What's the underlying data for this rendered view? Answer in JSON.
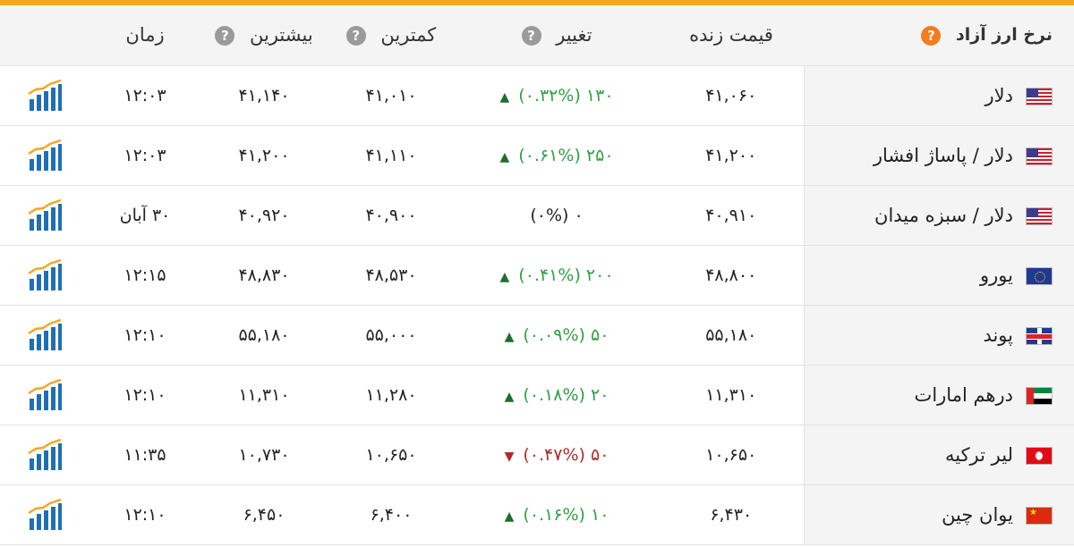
{
  "header": {
    "title": "نرخ ارز آزاد",
    "title_help": "?",
    "columns": {
      "live_price": "قیمت زنده",
      "change": "تغییر",
      "low": "کمترین",
      "high": "بیشترین",
      "time": "زمان"
    },
    "help_mark": "?"
  },
  "rows": [
    {
      "name": "دلار",
      "flag": "us-flag",
      "price": "۴۱,۰۶۰",
      "change_value": "۱۳۰",
      "change_pct": "(۰.۳۲%)",
      "direction": "up",
      "low": "۴۱,۰۱۰",
      "high": "۴۱,۱۴۰",
      "time": "۱۲:۰۳"
    },
    {
      "name": "دلار / پاساژ افشار",
      "flag": "us-flag",
      "price": "۴۱,۲۰۰",
      "change_value": "۲۵۰",
      "change_pct": "(۰.۶۱%)",
      "direction": "up",
      "low": "۴۱,۱۱۰",
      "high": "۴۱,۲۰۰",
      "time": "۱۲:۰۳"
    },
    {
      "name": "دلار / سبزه میدان",
      "flag": "us-flag",
      "price": "۴۰,۹۱۰",
      "change_value": "۰",
      "change_pct": "(۰%)",
      "direction": "flat",
      "low": "۴۰,۹۰۰",
      "high": "۴۰,۹۲۰",
      "time": "۳۰ آبان"
    },
    {
      "name": "یورو",
      "flag": "eu-flag",
      "price": "۴۸,۸۰۰",
      "change_value": "۲۰۰",
      "change_pct": "(۰.۴۱%)",
      "direction": "up",
      "low": "۴۸,۵۳۰",
      "high": "۴۸,۸۳۰",
      "time": "۱۲:۱۵"
    },
    {
      "name": "پوند",
      "flag": "uk-flag",
      "price": "۵۵,۱۸۰",
      "change_value": "۵۰",
      "change_pct": "(۰.۰۹%)",
      "direction": "up",
      "low": "۵۵,۰۰۰",
      "high": "۵۵,۱۸۰",
      "time": "۱۲:۱۰"
    },
    {
      "name": "درهم امارات",
      "flag": "ae-flag",
      "price": "۱۱,۳۱۰",
      "change_value": "۲۰",
      "change_pct": "(۰.۱۸%)",
      "direction": "up",
      "low": "۱۱,۲۸۰",
      "high": "۱۱,۳۱۰",
      "time": "۱۲:۱۰"
    },
    {
      "name": "لیر ترکیه",
      "flag": "tr-flag",
      "price": "۱۰,۶۵۰",
      "change_value": "۵۰",
      "change_pct": "(۰.۴۷%)",
      "direction": "down",
      "low": "۱۰,۶۵۰",
      "high": "۱۰,۷۳۰",
      "time": "۱۱:۳۵"
    },
    {
      "name": "یوان چین",
      "flag": "cn-flag",
      "price": "۶,۴۳۰",
      "change_value": "۱۰",
      "change_pct": "(۰.۱۶%)",
      "direction": "up",
      "low": "۶,۴۰۰",
      "high": "۶,۴۵۰",
      "time": "۱۲:۱۰"
    }
  ],
  "colors": {
    "accent": "#f5a623",
    "up": "#2ea043",
    "down": "#b02a2a",
    "header_bg": "#f4f4f4",
    "chart_icon": "#1f6fb5"
  },
  "icons": {
    "chart": "bar-chart-icon",
    "arrow_up": "triangle-up-icon",
    "arrow_down": "triangle-down-icon"
  }
}
